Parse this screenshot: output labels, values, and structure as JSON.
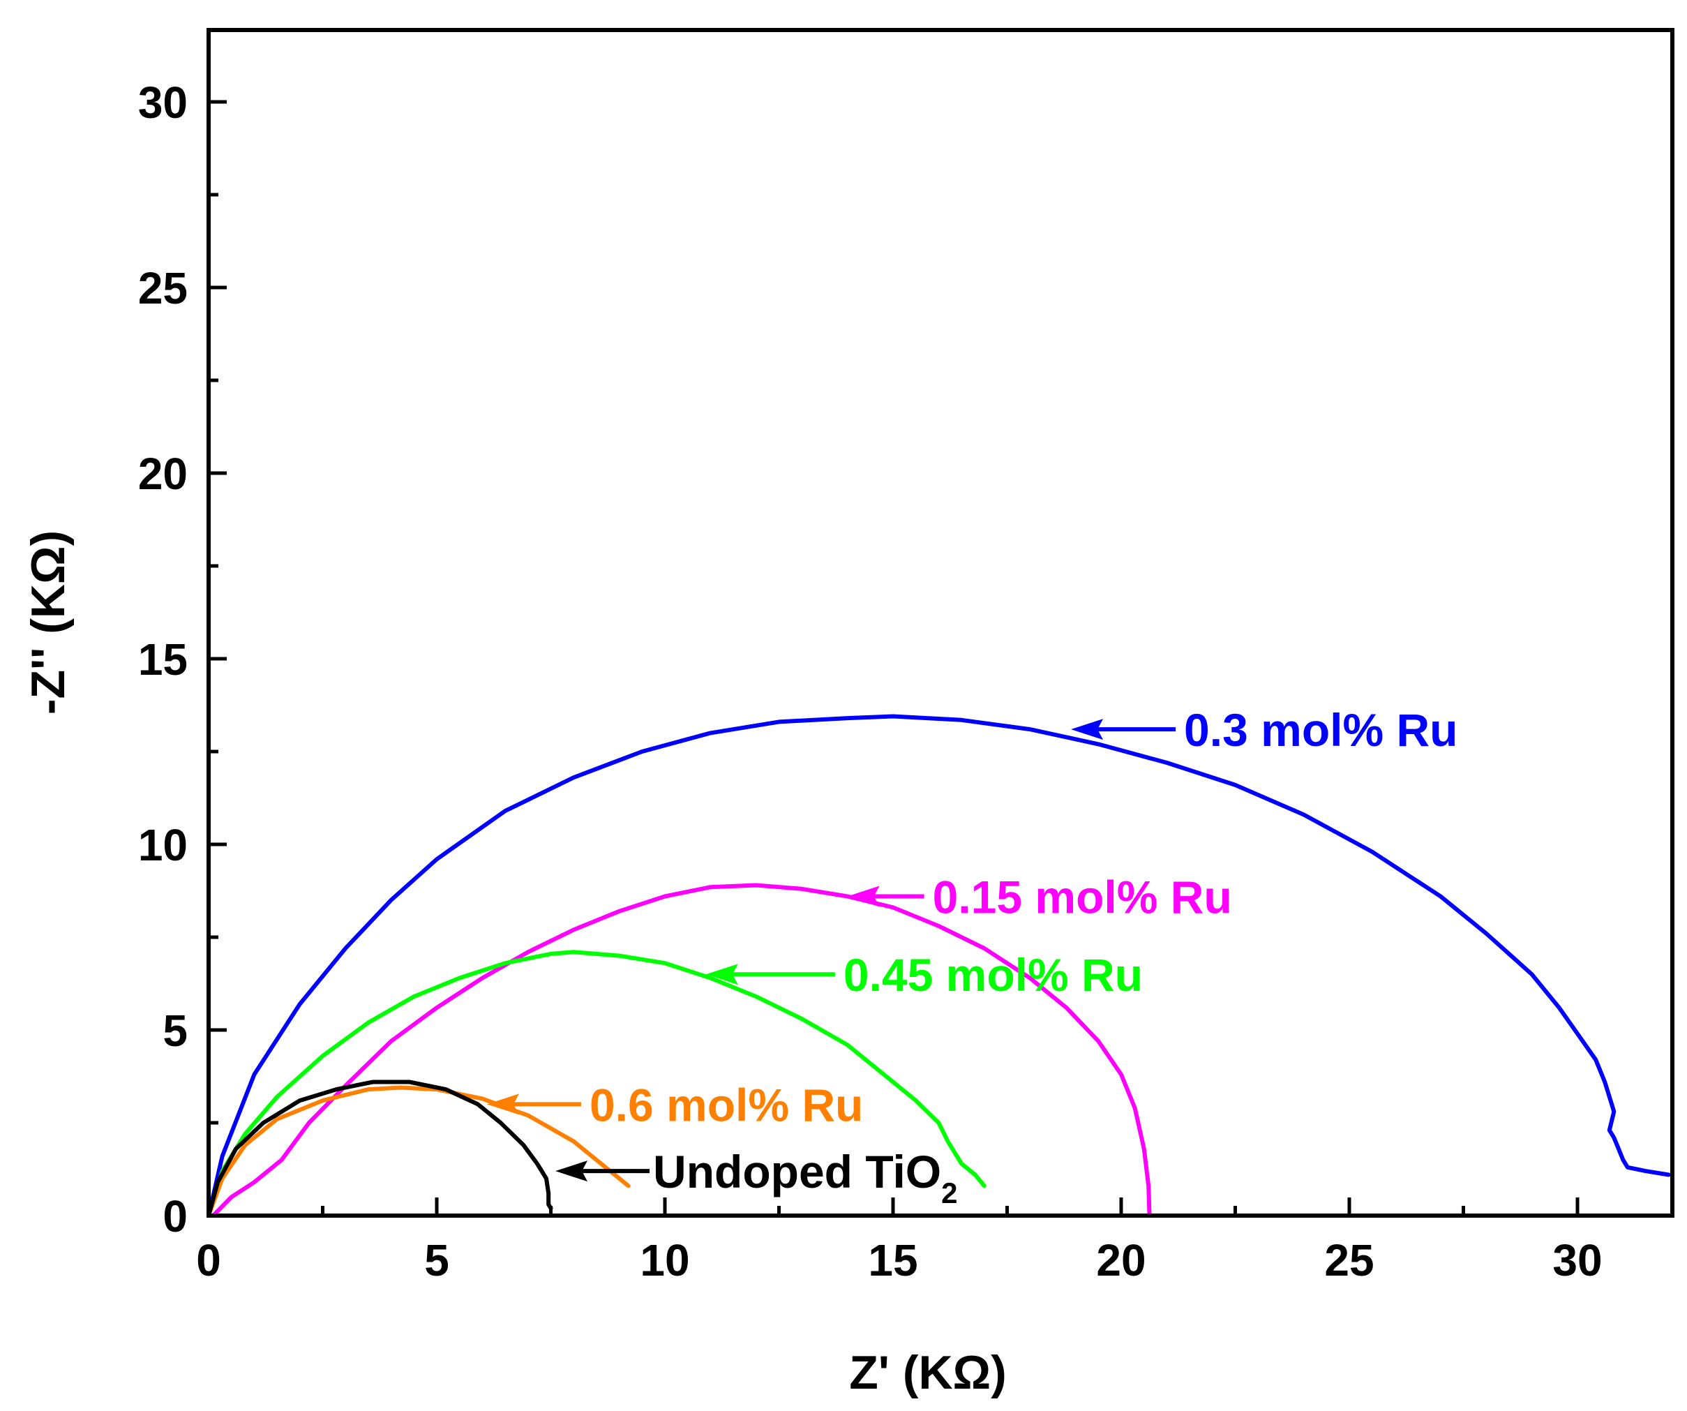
{
  "chart_data": {
    "type": "line",
    "title": "",
    "xlabel": "Z' (KΩ)",
    "ylabel": "-Z'' (KΩ)",
    "xlim": [
      0,
      32
    ],
    "ylim": [
      0,
      32
    ],
    "xticks": [
      0,
      5,
      10,
      15,
      20,
      25,
      30
    ],
    "yticks": [
      0,
      5,
      10,
      15,
      20,
      25,
      30
    ],
    "grid": false,
    "series": [
      {
        "name": "0.3 mol% Ru",
        "color": "#0000ff",
        "points": [
          [
            0,
            0
          ],
          [
            0.3,
            1.6
          ],
          [
            1.0,
            3.8
          ],
          [
            2.0,
            5.7
          ],
          [
            3.0,
            7.2
          ],
          [
            4.0,
            8.5
          ],
          [
            5.0,
            9.6
          ],
          [
            6.5,
            10.9
          ],
          [
            8.0,
            11.8
          ],
          [
            9.5,
            12.5
          ],
          [
            11.0,
            13.0
          ],
          [
            12.5,
            13.3
          ],
          [
            14.0,
            13.4
          ],
          [
            15.0,
            13.45
          ],
          [
            16.5,
            13.35
          ],
          [
            18.0,
            13.1
          ],
          [
            19.5,
            12.7
          ],
          [
            21.0,
            12.2
          ],
          [
            22.5,
            11.6
          ],
          [
            24.0,
            10.8
          ],
          [
            25.5,
            9.8
          ],
          [
            27.0,
            8.6
          ],
          [
            28.0,
            7.6
          ],
          [
            29.0,
            6.5
          ],
          [
            29.6,
            5.6
          ],
          [
            30.0,
            4.9
          ],
          [
            30.4,
            4.2
          ],
          [
            30.6,
            3.6
          ],
          [
            30.75,
            3.0
          ],
          [
            30.8,
            2.8
          ],
          [
            30.7,
            2.3
          ],
          [
            30.8,
            2.1
          ],
          [
            30.9,
            1.8
          ],
          [
            31.0,
            1.5
          ],
          [
            31.1,
            1.3
          ],
          [
            31.5,
            1.2
          ],
          [
            32.0,
            1.1
          ]
        ]
      },
      {
        "name": "0.15 mol% Ru",
        "color": "#ff00ff",
        "points": [
          [
            0.1,
            0
          ],
          [
            0.5,
            0.5
          ],
          [
            1.0,
            0.9
          ],
          [
            1.6,
            1.5
          ],
          [
            2.2,
            2.5
          ],
          [
            3.0,
            3.5
          ],
          [
            4.0,
            4.7
          ],
          [
            5.0,
            5.6
          ],
          [
            6.0,
            6.4
          ],
          [
            7.0,
            7.1
          ],
          [
            8.0,
            7.7
          ],
          [
            9.0,
            8.2
          ],
          [
            10.0,
            8.6
          ],
          [
            11.0,
            8.85
          ],
          [
            12.0,
            8.9
          ],
          [
            13.0,
            8.8
          ],
          [
            14.0,
            8.6
          ],
          [
            15.0,
            8.3
          ],
          [
            16.0,
            7.8
          ],
          [
            17.0,
            7.2
          ],
          [
            18.0,
            6.4
          ],
          [
            18.8,
            5.6
          ],
          [
            19.5,
            4.7
          ],
          [
            20.0,
            3.8
          ],
          [
            20.3,
            2.9
          ],
          [
            20.5,
            1.8
          ],
          [
            20.6,
            0.8
          ],
          [
            20.62,
            0
          ]
        ]
      },
      {
        "name": "0.45 mol% Ru",
        "color": "#00ff00",
        "points": [
          [
            0,
            0
          ],
          [
            0.3,
            1.2
          ],
          [
            0.8,
            2.2
          ],
          [
            1.5,
            3.2
          ],
          [
            2.5,
            4.3
          ],
          [
            3.5,
            5.2
          ],
          [
            4.5,
            5.9
          ],
          [
            5.5,
            6.4
          ],
          [
            6.5,
            6.8
          ],
          [
            7.5,
            7.05
          ],
          [
            8.0,
            7.1
          ],
          [
            9.0,
            7.0
          ],
          [
            10.0,
            6.8
          ],
          [
            11.0,
            6.4
          ],
          [
            12.0,
            5.9
          ],
          [
            13.0,
            5.3
          ],
          [
            14.0,
            4.6
          ],
          [
            14.8,
            3.8
          ],
          [
            15.5,
            3.1
          ],
          [
            16.0,
            2.5
          ],
          [
            16.2,
            2.0
          ],
          [
            16.5,
            1.4
          ],
          [
            16.8,
            1.1
          ],
          [
            17.0,
            0.8
          ]
        ]
      },
      {
        "name": "0.6 mol% Ru",
        "color": "#ff8000",
        "points": [
          [
            0,
            0
          ],
          [
            0.3,
            1.0
          ],
          [
            0.8,
            1.9
          ],
          [
            1.5,
            2.6
          ],
          [
            2.5,
            3.1
          ],
          [
            3.5,
            3.4
          ],
          [
            4.2,
            3.45
          ],
          [
            5.0,
            3.4
          ],
          [
            6.0,
            3.15
          ],
          [
            7.0,
            2.7
          ],
          [
            8.0,
            2.0
          ],
          [
            8.6,
            1.4
          ],
          [
            9.2,
            0.8
          ]
        ]
      },
      {
        "name": "Undoped TiO2",
        "color": "#000000",
        "points": [
          [
            0,
            0
          ],
          [
            0.2,
            0.9
          ],
          [
            0.6,
            1.8
          ],
          [
            1.2,
            2.5
          ],
          [
            2.0,
            3.1
          ],
          [
            2.8,
            3.4
          ],
          [
            3.6,
            3.6
          ],
          [
            4.4,
            3.6
          ],
          [
            5.2,
            3.4
          ],
          [
            5.9,
            3.0
          ],
          [
            6.4,
            2.5
          ],
          [
            6.9,
            1.9
          ],
          [
            7.2,
            1.4
          ],
          [
            7.4,
            1.0
          ],
          [
            7.45,
            0.6
          ],
          [
            7.45,
            0.3
          ],
          [
            7.5,
            0.2
          ]
        ]
      }
    ],
    "annotations": [
      {
        "text": "0.3 mol% Ru",
        "color": "#0000ff",
        "arrow_tip": [
          18.9,
          13.1
        ]
      },
      {
        "text": "0.15 mol% Ru",
        "color": "#ff00ff",
        "arrow_tip": [
          14.0,
          8.6
        ]
      },
      {
        "text": "0.45 mol% Ru",
        "color": "#00ff00",
        "arrow_tip": [
          10.9,
          6.5
        ]
      },
      {
        "text": "0.6 mol% Ru",
        "color": "#ff8000",
        "arrow_tip": [
          6.1,
          3.0
        ]
      },
      {
        "text": "Undoped TiO",
        "subscript": "2",
        "color": "#000000",
        "arrow_tip": [
          7.6,
          1.2
        ]
      }
    ]
  }
}
